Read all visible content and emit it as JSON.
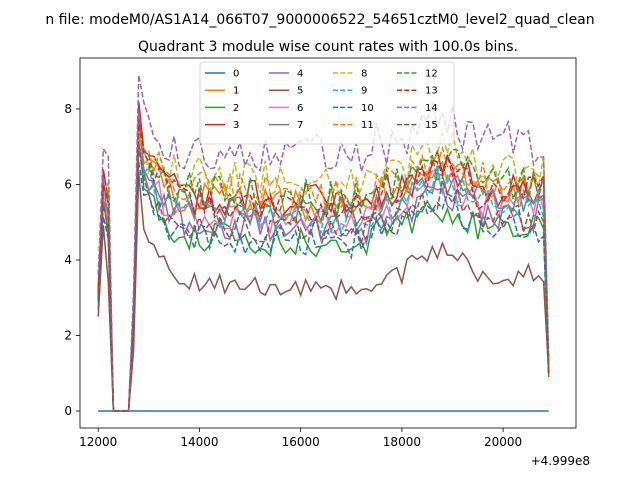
{
  "chart_data": {
    "type": "line",
    "suptitle": "n file: modeM0/AS1A14_066T07_9000006522_54651cztM0_level2_quad_clean",
    "title": "Quadrant 3 module wise count rates with 100.0s bins.",
    "xlabel": "",
    "ylabel": "",
    "x_offset_label": "+4.999e8",
    "xlim": [
      11640,
      21440
    ],
    "ylim": [
      -0.45,
      9.35
    ],
    "x_ticks": [
      12000,
      14000,
      16000,
      18000,
      20000
    ],
    "x_tick_labels": [
      "12000",
      "14000",
      "16000",
      "18000",
      "20000"
    ],
    "y_ticks": [
      0,
      2,
      4,
      6,
      8
    ],
    "y_tick_labels": [
      "0",
      "2",
      "4",
      "6",
      "8"
    ],
    "x_start": 12000,
    "bin_width": 100,
    "n_bins": 90,
    "series": [
      {
        "name": "0",
        "color": "#1f77b4",
        "dash": "solid",
        "seed": 101,
        "plateau": 0.0,
        "peak": 0.0,
        "first": 0.0,
        "last": 0.0
      },
      {
        "name": "1",
        "color": "#ff7f0e",
        "dash": "solid",
        "seed": 102,
        "plateau": 5.8,
        "peak": 7.6,
        "first": 3.2,
        "last": 1.0
      },
      {
        "name": "2",
        "color": "#2ca02c",
        "dash": "solid",
        "seed": 103,
        "plateau": 4.8,
        "peak": 7.3,
        "first": 2.9,
        "last": 0.9
      },
      {
        "name": "3",
        "color": "#d62728",
        "dash": "solid",
        "seed": 104,
        "plateau": 5.9,
        "peak": 8.2,
        "first": 3.1,
        "last": 1.1
      },
      {
        "name": "4",
        "color": "#9467bd",
        "dash": "solid",
        "seed": 105,
        "plateau": 5.2,
        "peak": 7.9,
        "first": 2.7,
        "last": 1.0
      },
      {
        "name": "5",
        "color": "#8c564b",
        "dash": "solid",
        "seed": 106,
        "plateau": 3.6,
        "peak": 6.3,
        "first": 2.5,
        "last": 1.0
      },
      {
        "name": "6",
        "color": "#e377c2",
        "dash": "solid",
        "seed": 107,
        "plateau": 5.4,
        "peak": 7.2,
        "first": 3.0,
        "last": 1.2
      },
      {
        "name": "7",
        "color": "#7f7f7f",
        "dash": "solid",
        "seed": 108,
        "plateau": 5.6,
        "peak": 7.1,
        "first": 3.1,
        "last": 1.1
      },
      {
        "name": "8",
        "color": "#bcbd22",
        "dash": "dashed",
        "seed": 109,
        "plateau": 6.4,
        "peak": 7.4,
        "first": 3.4,
        "last": 1.3
      },
      {
        "name": "9",
        "color": "#17becf",
        "dash": "dashed",
        "seed": 110,
        "plateau": 5.5,
        "peak": 7.0,
        "first": 3.0,
        "last": 1.1
      },
      {
        "name": "10",
        "color": "#1f77b4",
        "dash": "dashed",
        "seed": 111,
        "plateau": 4.8,
        "peak": 6.6,
        "first": 2.9,
        "last": 1.0
      },
      {
        "name": "11",
        "color": "#ff7f0e",
        "dash": "dashed",
        "seed": 112,
        "plateau": 6.1,
        "peak": 7.5,
        "first": 3.3,
        "last": 1.2
      },
      {
        "name": "12",
        "color": "#2ca02c",
        "dash": "dashed",
        "seed": 113,
        "plateau": 6.0,
        "peak": 7.6,
        "first": 3.2,
        "last": 1.1
      },
      {
        "name": "13",
        "color": "#d62728",
        "dash": "dashed",
        "seed": 114,
        "plateau": 5.8,
        "peak": 7.7,
        "first": 3.1,
        "last": 1.0
      },
      {
        "name": "14",
        "color": "#9467bd",
        "dash": "dashed",
        "seed": 115,
        "plateau": 7.1,
        "peak": 8.9,
        "first": 3.6,
        "last": 1.4
      },
      {
        "name": "15",
        "color": "#8c564b",
        "dash": "dashed",
        "seed": 116,
        "plateau": 5.1,
        "peak": 7.0,
        "first": 3.0,
        "last": 1.2
      }
    ],
    "legend": {
      "location": "upper center",
      "columns": 4
    }
  }
}
